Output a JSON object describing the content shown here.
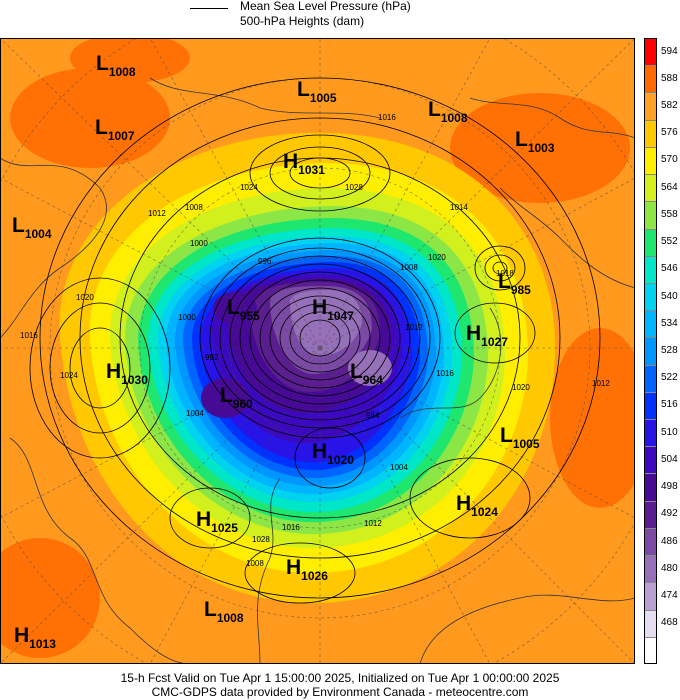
{
  "legend": {
    "line1": "Mean Sea Level Pressure (hPa)",
    "line2": "500-hPa Heights (dam)"
  },
  "colorbar": [
    {
      "label": "594",
      "color": "#ff0000"
    },
    {
      "label": "588",
      "color": "#ff6a00"
    },
    {
      "label": "582",
      "color": "#ffa028"
    },
    {
      "label": "576",
      "color": "#ffc800"
    },
    {
      "label": "570",
      "color": "#ffee00"
    },
    {
      "label": "564",
      "color": "#d2f01e"
    },
    {
      "label": "558",
      "color": "#8ce646"
    },
    {
      "label": "552",
      "color": "#1ee66e"
    },
    {
      "label": "546",
      "color": "#00e6c8"
    },
    {
      "label": "540",
      "color": "#00d2f0"
    },
    {
      "label": "534",
      "color": "#00b4ff"
    },
    {
      "label": "528",
      "color": "#0096ff"
    },
    {
      "label": "522",
      "color": "#0064ff"
    },
    {
      "label": "516",
      "color": "#0032ff"
    },
    {
      "label": "510",
      "color": "#2814e6"
    },
    {
      "label": "504",
      "color": "#3c0abe"
    },
    {
      "label": "498",
      "color": "#460a96"
    },
    {
      "label": "492",
      "color": "#5a1e91"
    },
    {
      "label": "486",
      "color": "#7a4aa5"
    },
    {
      "label": "480",
      "color": "#9670b9"
    },
    {
      "label": "474",
      "color": "#b9a0d2"
    },
    {
      "label": "468",
      "color": "#e6dcf0"
    },
    {
      "label": "",
      "color": "#ffffff"
    }
  ],
  "pressure_centers": [
    {
      "type": "L",
      "value": "1008"
    },
    {
      "type": "L",
      "value": "1005"
    },
    {
      "type": "L",
      "value": "1008"
    },
    {
      "type": "L",
      "value": "1007"
    },
    {
      "type": "L",
      "value": "1003"
    },
    {
      "type": "H",
      "value": "1031"
    },
    {
      "type": "L",
      "value": "1004"
    },
    {
      "type": "L",
      "value": "985"
    },
    {
      "type": "L",
      "value": "955"
    },
    {
      "type": "H",
      "value": "1047"
    },
    {
      "type": "H",
      "value": "1027"
    },
    {
      "type": "H",
      "value": "1030"
    },
    {
      "type": "L",
      "value": "964"
    },
    {
      "type": "L",
      "value": "960"
    },
    {
      "type": "L",
      "value": "1005"
    },
    {
      "type": "H",
      "value": "1020"
    },
    {
      "type": "H",
      "value": "1024"
    },
    {
      "type": "H",
      "value": "1025"
    },
    {
      "type": "H",
      "value": "1026"
    },
    {
      "type": "L",
      "value": "1008"
    },
    {
      "type": "H",
      "value": "1013"
    }
  ],
  "isobar_labels": [
    "1016",
    "1024",
    "1028",
    "1012",
    "1008",
    "1000",
    "996",
    "1014",
    "1018",
    "1020",
    "1016",
    "1024",
    "1000",
    "992",
    "1004",
    "1008",
    "1020",
    "1012",
    "984",
    "1016",
    "1012",
    "1004",
    "1020",
    "1028",
    "1016",
    "1012",
    "1008"
  ],
  "footer": {
    "line1": "15-h Fcst Valid on Tue Apr  1 15:00:00 2025, Initialized on Tue Apr  1 00:00:00 2025",
    "line2": "CMC-GDPS data provided by Environment Canada - meteocentre.com"
  }
}
